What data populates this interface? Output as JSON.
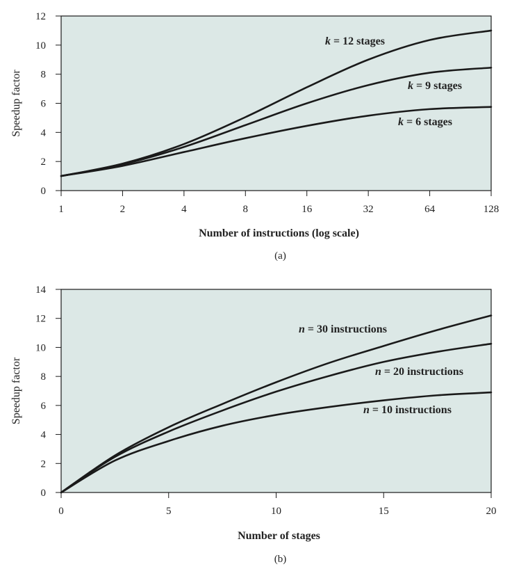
{
  "chart_data": [
    {
      "id": "a",
      "type": "line",
      "caption": "(a)",
      "xlabel": "Number of instructions (log scale)",
      "ylabel": "Speedup factor",
      "xscale": "log2",
      "xlim": [
        1,
        128
      ],
      "ylim": [
        0,
        12
      ],
      "xticks": [
        1,
        2,
        4,
        8,
        16,
        32,
        64,
        128
      ],
      "xtick_labels": [
        "1",
        "2",
        "4",
        "8",
        "16",
        "32",
        "64",
        "128"
      ],
      "yticks": [
        0,
        2,
        4,
        6,
        8,
        10,
        12
      ],
      "ytick_labels": [
        "0",
        "2",
        "4",
        "6",
        "8",
        "10",
        "12"
      ],
      "background": "#dce8e6",
      "line_color": "#1a1a1a",
      "series": [
        {
          "name": "k = 12 stages",
          "var": "k",
          "text": " = 12 stages",
          "k": 12,
          "x": [
            1,
            2,
            4,
            8,
            16,
            32,
            64,
            128
          ],
          "values": [
            1.0,
            1.85,
            3.2,
            5.05,
            7.1,
            9.0,
            10.35,
            11.0
          ]
        },
        {
          "name": "k = 9 stages",
          "var": "k",
          "text": " = 9 stages",
          "k": 9,
          "x": [
            1,
            2,
            4,
            8,
            16,
            32,
            64,
            128
          ],
          "values": [
            1.0,
            1.8,
            3.0,
            4.5,
            6.0,
            7.25,
            8.1,
            8.45
          ]
        },
        {
          "name": "k = 6 stages",
          "var": "k",
          "text": " = 6 stages",
          "k": 6,
          "x": [
            1,
            2,
            4,
            8,
            16,
            32,
            64,
            128
          ],
          "values": [
            1.0,
            1.7,
            2.65,
            3.6,
            4.45,
            5.15,
            5.6,
            5.75
          ]
        }
      ]
    },
    {
      "id": "b",
      "type": "line",
      "caption": "(b)",
      "xlabel": "Number of stages",
      "ylabel": "Speedup factor",
      "xscale": "linear",
      "xlim": [
        0,
        20
      ],
      "ylim": [
        0,
        14
      ],
      "xticks": [
        0,
        5,
        10,
        15,
        20
      ],
      "xtick_labels": [
        "0",
        "5",
        "10",
        "15",
        "20"
      ],
      "yticks": [
        0,
        2,
        4,
        6,
        8,
        10,
        12,
        14
      ],
      "ytick_labels": [
        "0",
        "2",
        "4",
        "6",
        "8",
        "10",
        "12",
        "14"
      ],
      "background": "#dce8e6",
      "line_color": "#1a1a1a",
      "series": [
        {
          "name": "n = 30 instructions",
          "var": "n",
          "text": " = 30 instructions",
          "n": 30,
          "x": [
            0,
            2.5,
            5,
            7.5,
            10,
            12.5,
            15,
            17.5,
            20
          ],
          "values": [
            0,
            2.55,
            4.5,
            6.1,
            7.6,
            8.95,
            10.1,
            11.2,
            12.2
          ]
        },
        {
          "name": "n = 20 instructions",
          "var": "n",
          "text": " = 20 instructions",
          "n": 20,
          "x": [
            0,
            2.5,
            5,
            7.5,
            10,
            12.5,
            15,
            17.5,
            20
          ],
          "values": [
            0,
            2.45,
            4.2,
            5.65,
            6.95,
            8.05,
            9.0,
            9.7,
            10.25
          ]
        },
        {
          "name": "n = 10 instructions",
          "var": "n",
          "text": " = 10 instructions",
          "n": 10,
          "x": [
            0,
            2.5,
            5,
            7.5,
            10,
            12.5,
            15,
            17.5,
            20
          ],
          "values": [
            0,
            2.2,
            3.55,
            4.6,
            5.35,
            5.9,
            6.35,
            6.7,
            6.9
          ]
        }
      ]
    }
  ]
}
